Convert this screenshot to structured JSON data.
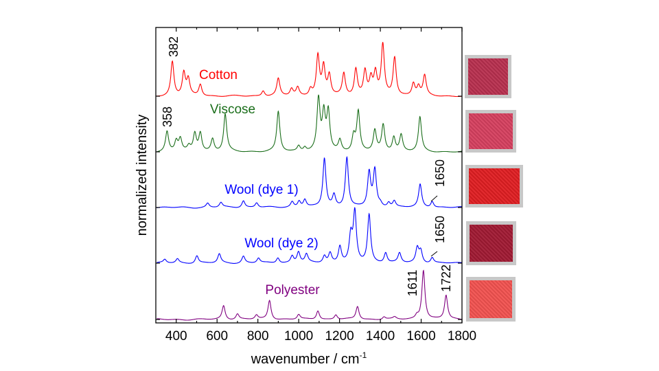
{
  "chart_data": {
    "type": "line",
    "xlabel": "wavenumber / cm",
    "xlabel_sup": "-1",
    "ylabel": "normalized intensity",
    "xlim": [
      300,
      1800
    ],
    "ylim": [
      -5,
      425
    ],
    "x_ticks": [
      400,
      600,
      800,
      1000,
      1200,
      1400,
      1600,
      1800
    ],
    "x_tick_labels": [
      "400",
      "600",
      "800",
      "1000",
      "1200",
      "1400",
      "1600",
      "1800"
    ],
    "y_tick_labels_shown": false,
    "grid": false,
    "legend": "none (inline labels)",
    "series": [
      {
        "name": "Cotton",
        "color": "#ff0000",
        "offset": 325,
        "peaks": [
          [
            381,
            50
          ],
          [
            437,
            33
          ],
          [
            459,
            23
          ],
          [
            518,
            17
          ],
          [
            826,
            8
          ],
          [
            900,
            25
          ],
          [
            965,
            10
          ],
          [
            995,
            12
          ],
          [
            1058,
            10
          ],
          [
            1094,
            57
          ],
          [
            1122,
            41
          ],
          [
            1150,
            29
          ],
          [
            1221,
            32
          ],
          [
            1280,
            39
          ],
          [
            1325,
            35
          ],
          [
            1354,
            24
          ],
          [
            1376,
            32
          ],
          [
            1412,
            73
          ],
          [
            1470,
            56
          ],
          [
            1562,
            18
          ],
          [
            1587,
            13
          ],
          [
            1617,
            29
          ]
        ]
      },
      {
        "name": "Viscose",
        "color": "#1a6e1a",
        "offset": 244,
        "peaks": [
          [
            355,
            29
          ],
          [
            400,
            15
          ],
          [
            420,
            18
          ],
          [
            462,
            7
          ],
          [
            491,
            26
          ],
          [
            518,
            27
          ],
          [
            578,
            18
          ],
          [
            640,
            54
          ],
          [
            900,
            58
          ],
          [
            1000,
            8
          ],
          [
            1030,
            6
          ],
          [
            1097,
            74
          ],
          [
            1123,
            52
          ],
          [
            1145,
            56
          ],
          [
            1202,
            16
          ],
          [
            1269,
            22
          ],
          [
            1292,
            57
          ],
          [
            1373,
            30
          ],
          [
            1414,
            38
          ],
          [
            1466,
            21
          ],
          [
            1502,
            24
          ],
          [
            1594,
            50
          ]
        ]
      },
      {
        "name": "Wool (dye 1)",
        "color": "#0000ff",
        "offset": 163,
        "peaks": [
          [
            554,
            6
          ],
          [
            619,
            7
          ],
          [
            729,
            10
          ],
          [
            794,
            7
          ],
          [
            968,
            8
          ],
          [
            1002,
            9
          ],
          [
            1030,
            11
          ],
          [
            1126,
            71
          ],
          [
            1173,
            17
          ],
          [
            1236,
            73
          ],
          [
            1345,
            50
          ],
          [
            1373,
            53
          ],
          [
            1400,
            4
          ],
          [
            1441,
            7
          ],
          [
            1468,
            9
          ],
          [
            1595,
            33
          ],
          [
            1654,
            9
          ]
        ]
      },
      {
        "name": "Wool (dye 2)",
        "color": "#0000ff",
        "offset": 82,
        "peaks": [
          [
            344,
            5
          ],
          [
            406,
            6
          ],
          [
            501,
            11
          ],
          [
            611,
            13
          ],
          [
            729,
            10
          ],
          [
            803,
            7
          ],
          [
            898,
            8
          ],
          [
            968,
            10
          ],
          [
            999,
            16
          ],
          [
            1038,
            12
          ],
          [
            1126,
            10
          ],
          [
            1154,
            14
          ],
          [
            1202,
            24
          ],
          [
            1255,
            37
          ],
          [
            1275,
            72
          ],
          [
            1345,
            70
          ],
          [
            1426,
            15
          ],
          [
            1494,
            14
          ],
          [
            1581,
            21
          ],
          [
            1598,
            17
          ],
          [
            1654,
            8
          ]
        ]
      },
      {
        "name": "Polyester",
        "color": "#800080",
        "offset": 0,
        "peaks": [
          [
            632,
            20
          ],
          [
            700,
            8
          ],
          [
            793,
            6
          ],
          [
            857,
            28
          ],
          [
            1000,
            7
          ],
          [
            1094,
            13
          ],
          [
            1182,
            7
          ],
          [
            1288,
            19
          ],
          [
            1418,
            4
          ],
          [
            1470,
            3
          ],
          [
            1579,
            5
          ],
          [
            1611,
            72
          ],
          [
            1722,
            35
          ]
        ]
      }
    ],
    "annotations": [
      "382",
      "358",
      "1650",
      "1650",
      "1611",
      "1722"
    ]
  },
  "swatches": [
    {
      "sample": "Cotton",
      "color": "#b8304f"
    },
    {
      "sample": "Viscose",
      "color": "#d6405f"
    },
    {
      "sample": "Wool (dye 1)",
      "color": "#e01e22"
    },
    {
      "sample": "Wool (dye 2)",
      "color": "#a11a33"
    },
    {
      "sample": "Polyester",
      "color": "#f25250"
    }
  ]
}
